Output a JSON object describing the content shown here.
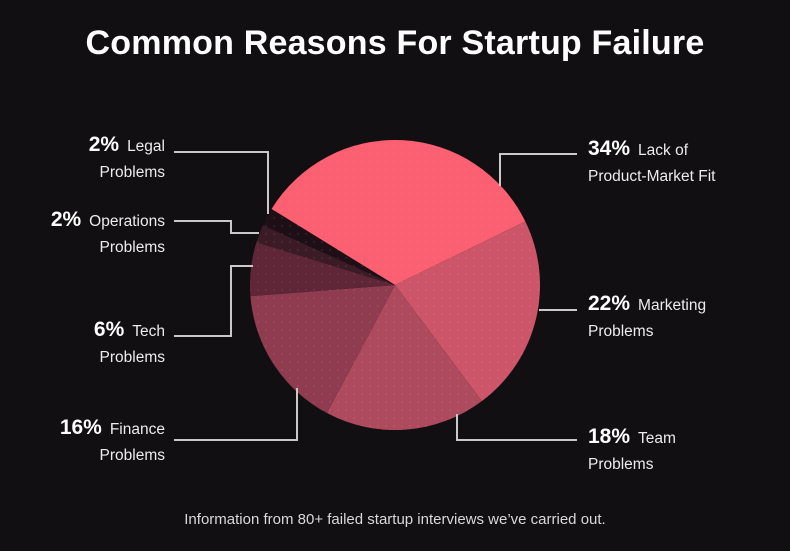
{
  "title": "Common Reasons For Startup Failure",
  "footer": {
    "text": "Information from 80+ failed startup interviews we’ve carried out."
  },
  "colors": {
    "background": "#110f11",
    "leader_line": "#c9c9c9",
    "title_text": "#ffffff",
    "label_text": "#ececec"
  },
  "chart_data": {
    "type": "pie",
    "title": "Common Reasons For Startup Failure",
    "start_angle_deg": 148.4,
    "direction": "clockwise",
    "legend_position": "callout-labels",
    "segments": [
      {
        "label": "Lack of Product-Market Fit",
        "value": 34,
        "color": "#fb5f72"
      },
      {
        "label": "Marketing Problems",
        "value": 22,
        "color": "#cd5569"
      },
      {
        "label": "Team Problems",
        "value": 18,
        "color": "#ad4a5e"
      },
      {
        "label": "Finance Problems",
        "value": 16,
        "color": "#8f3b50"
      },
      {
        "label": "Tech Problems",
        "value": 6,
        "color": "#5f2638"
      },
      {
        "label": "Operations Problems",
        "value": 2,
        "color": "#3a1b26"
      },
      {
        "label": "Legal Problems",
        "value": 2,
        "color": "#1d0f15"
      }
    ]
  },
  "callouts": {
    "left": [
      {
        "pct": "2%",
        "line1": "Legal",
        "line2": "Problems"
      },
      {
        "pct": "2%",
        "line1": "Operations",
        "line2": "Problems"
      },
      {
        "pct": "6%",
        "line1": "Tech",
        "line2": "Problems"
      },
      {
        "pct": "16%",
        "line1": "Finance",
        "line2": "Problems"
      }
    ],
    "right": [
      {
        "pct": "34%",
        "line1": "Lack of",
        "line2": "Product-Market Fit"
      },
      {
        "pct": "22%",
        "line1": "Marketing",
        "line2": "Problems"
      },
      {
        "pct": "18%",
        "line1": "Team",
        "line2": "Problems"
      }
    ]
  }
}
